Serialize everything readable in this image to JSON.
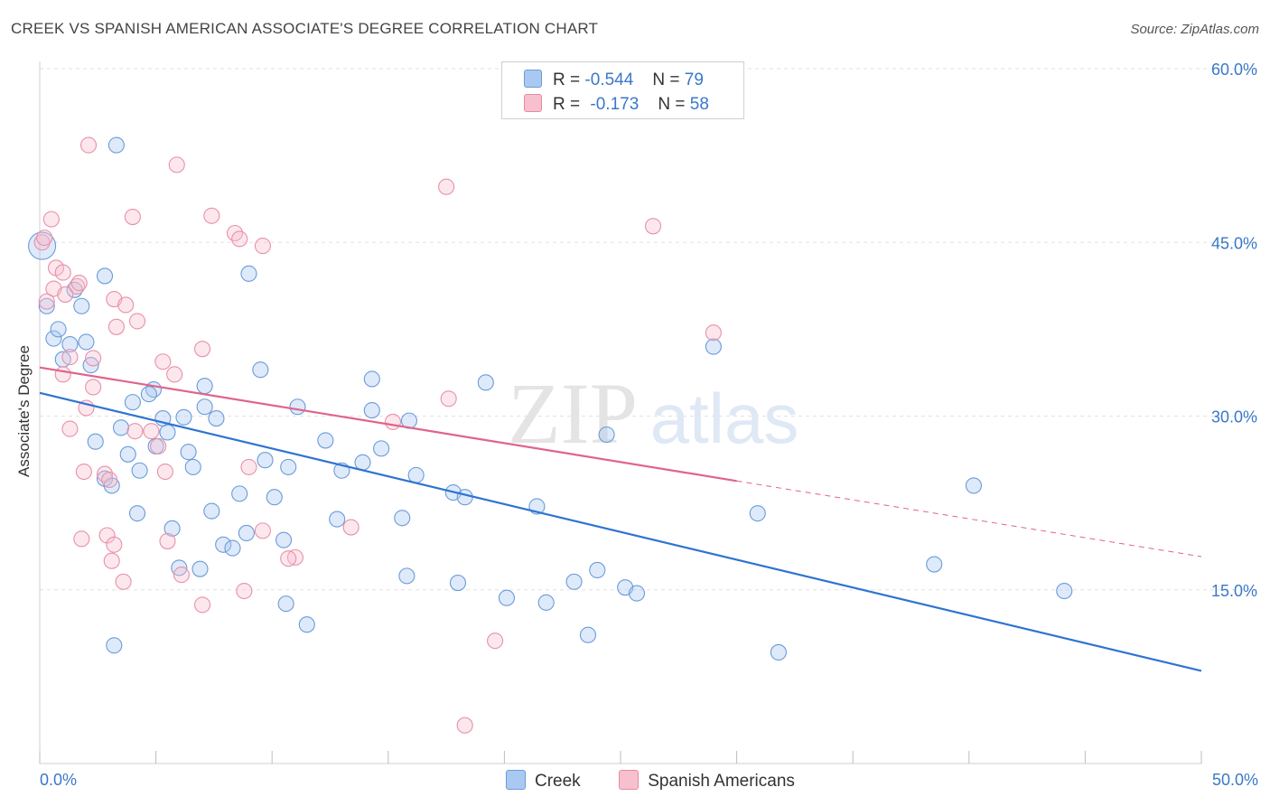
{
  "title": "CREEK VS SPANISH AMERICAN ASSOCIATE'S DEGREE CORRELATION CHART",
  "source": "Source: ZipAtlas.com",
  "watermark": {
    "zip": "ZIP",
    "atlas": "atlas"
  },
  "legend": {
    "rows": [
      {
        "r_label": "R =",
        "r_value": "-0.544",
        "n_label": "N =",
        "n_value": "79",
        "color": "#a9c9f2",
        "border": "#6a9bd8"
      },
      {
        "r_label": "R =",
        "r_value": "-0.173",
        "n_label": "N =",
        "n_value": "58",
        "color": "#f7c0cf",
        "border": "#e48aa4"
      }
    ]
  },
  "bottom_legend": {
    "series1": "Creek",
    "series2": "Spanish Americans"
  },
  "colors": {
    "creek": "#6a9bd8",
    "creek_line": "#2d74d0",
    "spanish": "#e890aa",
    "spanish_line": "#e0648a",
    "axis_text": "#3a78c9",
    "grid": "#e2e2e2"
  },
  "chart_data": {
    "type": "scatter",
    "ylabel": "Associate's Degree",
    "xlabel": "",
    "xlim": [
      0,
      50
    ],
    "ylim": [
      0,
      60
    ],
    "x_tick_labels": [
      "0.0%",
      "50.0%"
    ],
    "y_ticks": [
      15,
      30,
      45,
      60
    ],
    "y_tick_labels": [
      "15.0%",
      "30.0%",
      "45.0%",
      "60.0%"
    ],
    "grid": true,
    "series": [
      {
        "name": "Creek",
        "trend": {
          "x": [
            0,
            50
          ],
          "y": [
            32.0,
            8.0
          ]
        },
        "points": [
          [
            0.1,
            44.7
          ],
          [
            3.3,
            53.4
          ],
          [
            0.3,
            39.5
          ],
          [
            1.5,
            40.9
          ],
          [
            1.8,
            39.5
          ],
          [
            2.8,
            42.1
          ],
          [
            9.0,
            42.3
          ],
          [
            0.6,
            36.7
          ],
          [
            0.8,
            37.5
          ],
          [
            1.3,
            36.2
          ],
          [
            2.0,
            36.4
          ],
          [
            1.0,
            34.9
          ],
          [
            2.2,
            34.4
          ],
          [
            29.0,
            36.0
          ],
          [
            4.9,
            32.3
          ],
          [
            7.1,
            32.6
          ],
          [
            9.5,
            34.0
          ],
          [
            14.3,
            33.2
          ],
          [
            19.2,
            32.9
          ],
          [
            4.0,
            31.2
          ],
          [
            4.7,
            31.9
          ],
          [
            7.1,
            30.8
          ],
          [
            11.1,
            30.8
          ],
          [
            14.3,
            30.5
          ],
          [
            5.3,
            29.8
          ],
          [
            6.2,
            29.9
          ],
          [
            7.6,
            29.8
          ],
          [
            3.5,
            29.0
          ],
          [
            15.9,
            29.6
          ],
          [
            24.4,
            28.4
          ],
          [
            2.4,
            27.8
          ],
          [
            12.3,
            27.9
          ],
          [
            5.0,
            27.4
          ],
          [
            5.5,
            28.6
          ],
          [
            6.4,
            26.9
          ],
          [
            3.8,
            26.7
          ],
          [
            14.7,
            27.2
          ],
          [
            9.7,
            26.2
          ],
          [
            10.7,
            25.6
          ],
          [
            6.6,
            25.6
          ],
          [
            4.3,
            25.3
          ],
          [
            13.0,
            25.3
          ],
          [
            13.9,
            26.0
          ],
          [
            16.2,
            24.9
          ],
          [
            2.8,
            24.6
          ],
          [
            3.1,
            24.0
          ],
          [
            8.6,
            23.3
          ],
          [
            10.1,
            23.0
          ],
          [
            17.8,
            23.4
          ],
          [
            18.3,
            23.0
          ],
          [
            40.2,
            24.0
          ],
          [
            21.4,
            22.2
          ],
          [
            4.2,
            21.6
          ],
          [
            7.4,
            21.8
          ],
          [
            12.8,
            21.1
          ],
          [
            15.6,
            21.2
          ],
          [
            30.9,
            21.6
          ],
          [
            5.7,
            20.3
          ],
          [
            8.9,
            19.9
          ],
          [
            7.9,
            18.9
          ],
          [
            8.3,
            18.6
          ],
          [
            10.5,
            19.3
          ],
          [
            6.0,
            16.9
          ],
          [
            6.9,
            16.8
          ],
          [
            15.8,
            16.2
          ],
          [
            18.0,
            15.6
          ],
          [
            23.0,
            15.7
          ],
          [
            24.0,
            16.7
          ],
          [
            25.2,
            15.2
          ],
          [
            25.7,
            14.7
          ],
          [
            38.5,
            17.2
          ],
          [
            44.1,
            14.9
          ],
          [
            20.1,
            14.3
          ],
          [
            21.8,
            13.9
          ],
          [
            10.6,
            13.8
          ],
          [
            11.5,
            12.0
          ],
          [
            23.6,
            11.1
          ],
          [
            31.8,
            9.6
          ],
          [
            3.2,
            10.2
          ]
        ]
      },
      {
        "name": "Spanish Americans",
        "trend": {
          "x": [
            0,
            30
          ],
          "y": [
            34.2,
            24.4
          ]
        },
        "points": [
          [
            0.1,
            45.0
          ],
          [
            2.1,
            53.4
          ],
          [
            5.9,
            51.7
          ],
          [
            17.5,
            49.8
          ],
          [
            0.5,
            47.0
          ],
          [
            4.0,
            47.2
          ],
          [
            7.4,
            47.3
          ],
          [
            26.4,
            46.4
          ],
          [
            8.4,
            45.8
          ],
          [
            8.6,
            45.3
          ],
          [
            9.6,
            44.7
          ],
          [
            0.2,
            45.4
          ],
          [
            0.7,
            42.8
          ],
          [
            1.0,
            42.4
          ],
          [
            1.6,
            41.2
          ],
          [
            1.7,
            41.5
          ],
          [
            0.6,
            41.0
          ],
          [
            1.1,
            40.5
          ],
          [
            0.3,
            39.9
          ],
          [
            3.2,
            40.1
          ],
          [
            3.7,
            39.6
          ],
          [
            4.2,
            38.2
          ],
          [
            3.3,
            37.7
          ],
          [
            7.0,
            35.8
          ],
          [
            1.3,
            35.1
          ],
          [
            2.3,
            35.0
          ],
          [
            5.3,
            34.7
          ],
          [
            1.0,
            33.6
          ],
          [
            5.8,
            33.6
          ],
          [
            2.3,
            32.5
          ],
          [
            17.6,
            31.5
          ],
          [
            2.0,
            30.7
          ],
          [
            15.2,
            29.5
          ],
          [
            29.0,
            37.2
          ],
          [
            1.3,
            28.9
          ],
          [
            4.1,
            28.7
          ],
          [
            4.8,
            28.7
          ],
          [
            5.1,
            27.4
          ],
          [
            1.9,
            25.2
          ],
          [
            2.8,
            25.0
          ],
          [
            5.4,
            25.2
          ],
          [
            9.0,
            25.6
          ],
          [
            3.0,
            24.5
          ],
          [
            13.4,
            20.4
          ],
          [
            2.9,
            19.7
          ],
          [
            1.8,
            19.4
          ],
          [
            5.5,
            19.2
          ],
          [
            3.2,
            18.9
          ],
          [
            11.0,
            17.8
          ],
          [
            10.7,
            17.7
          ],
          [
            3.1,
            17.5
          ],
          [
            6.1,
            16.3
          ],
          [
            3.6,
            15.7
          ],
          [
            8.8,
            14.9
          ],
          [
            7.0,
            13.7
          ],
          [
            19.6,
            10.6
          ],
          [
            18.3,
            3.3
          ],
          [
            9.6,
            20.1
          ]
        ]
      }
    ]
  }
}
